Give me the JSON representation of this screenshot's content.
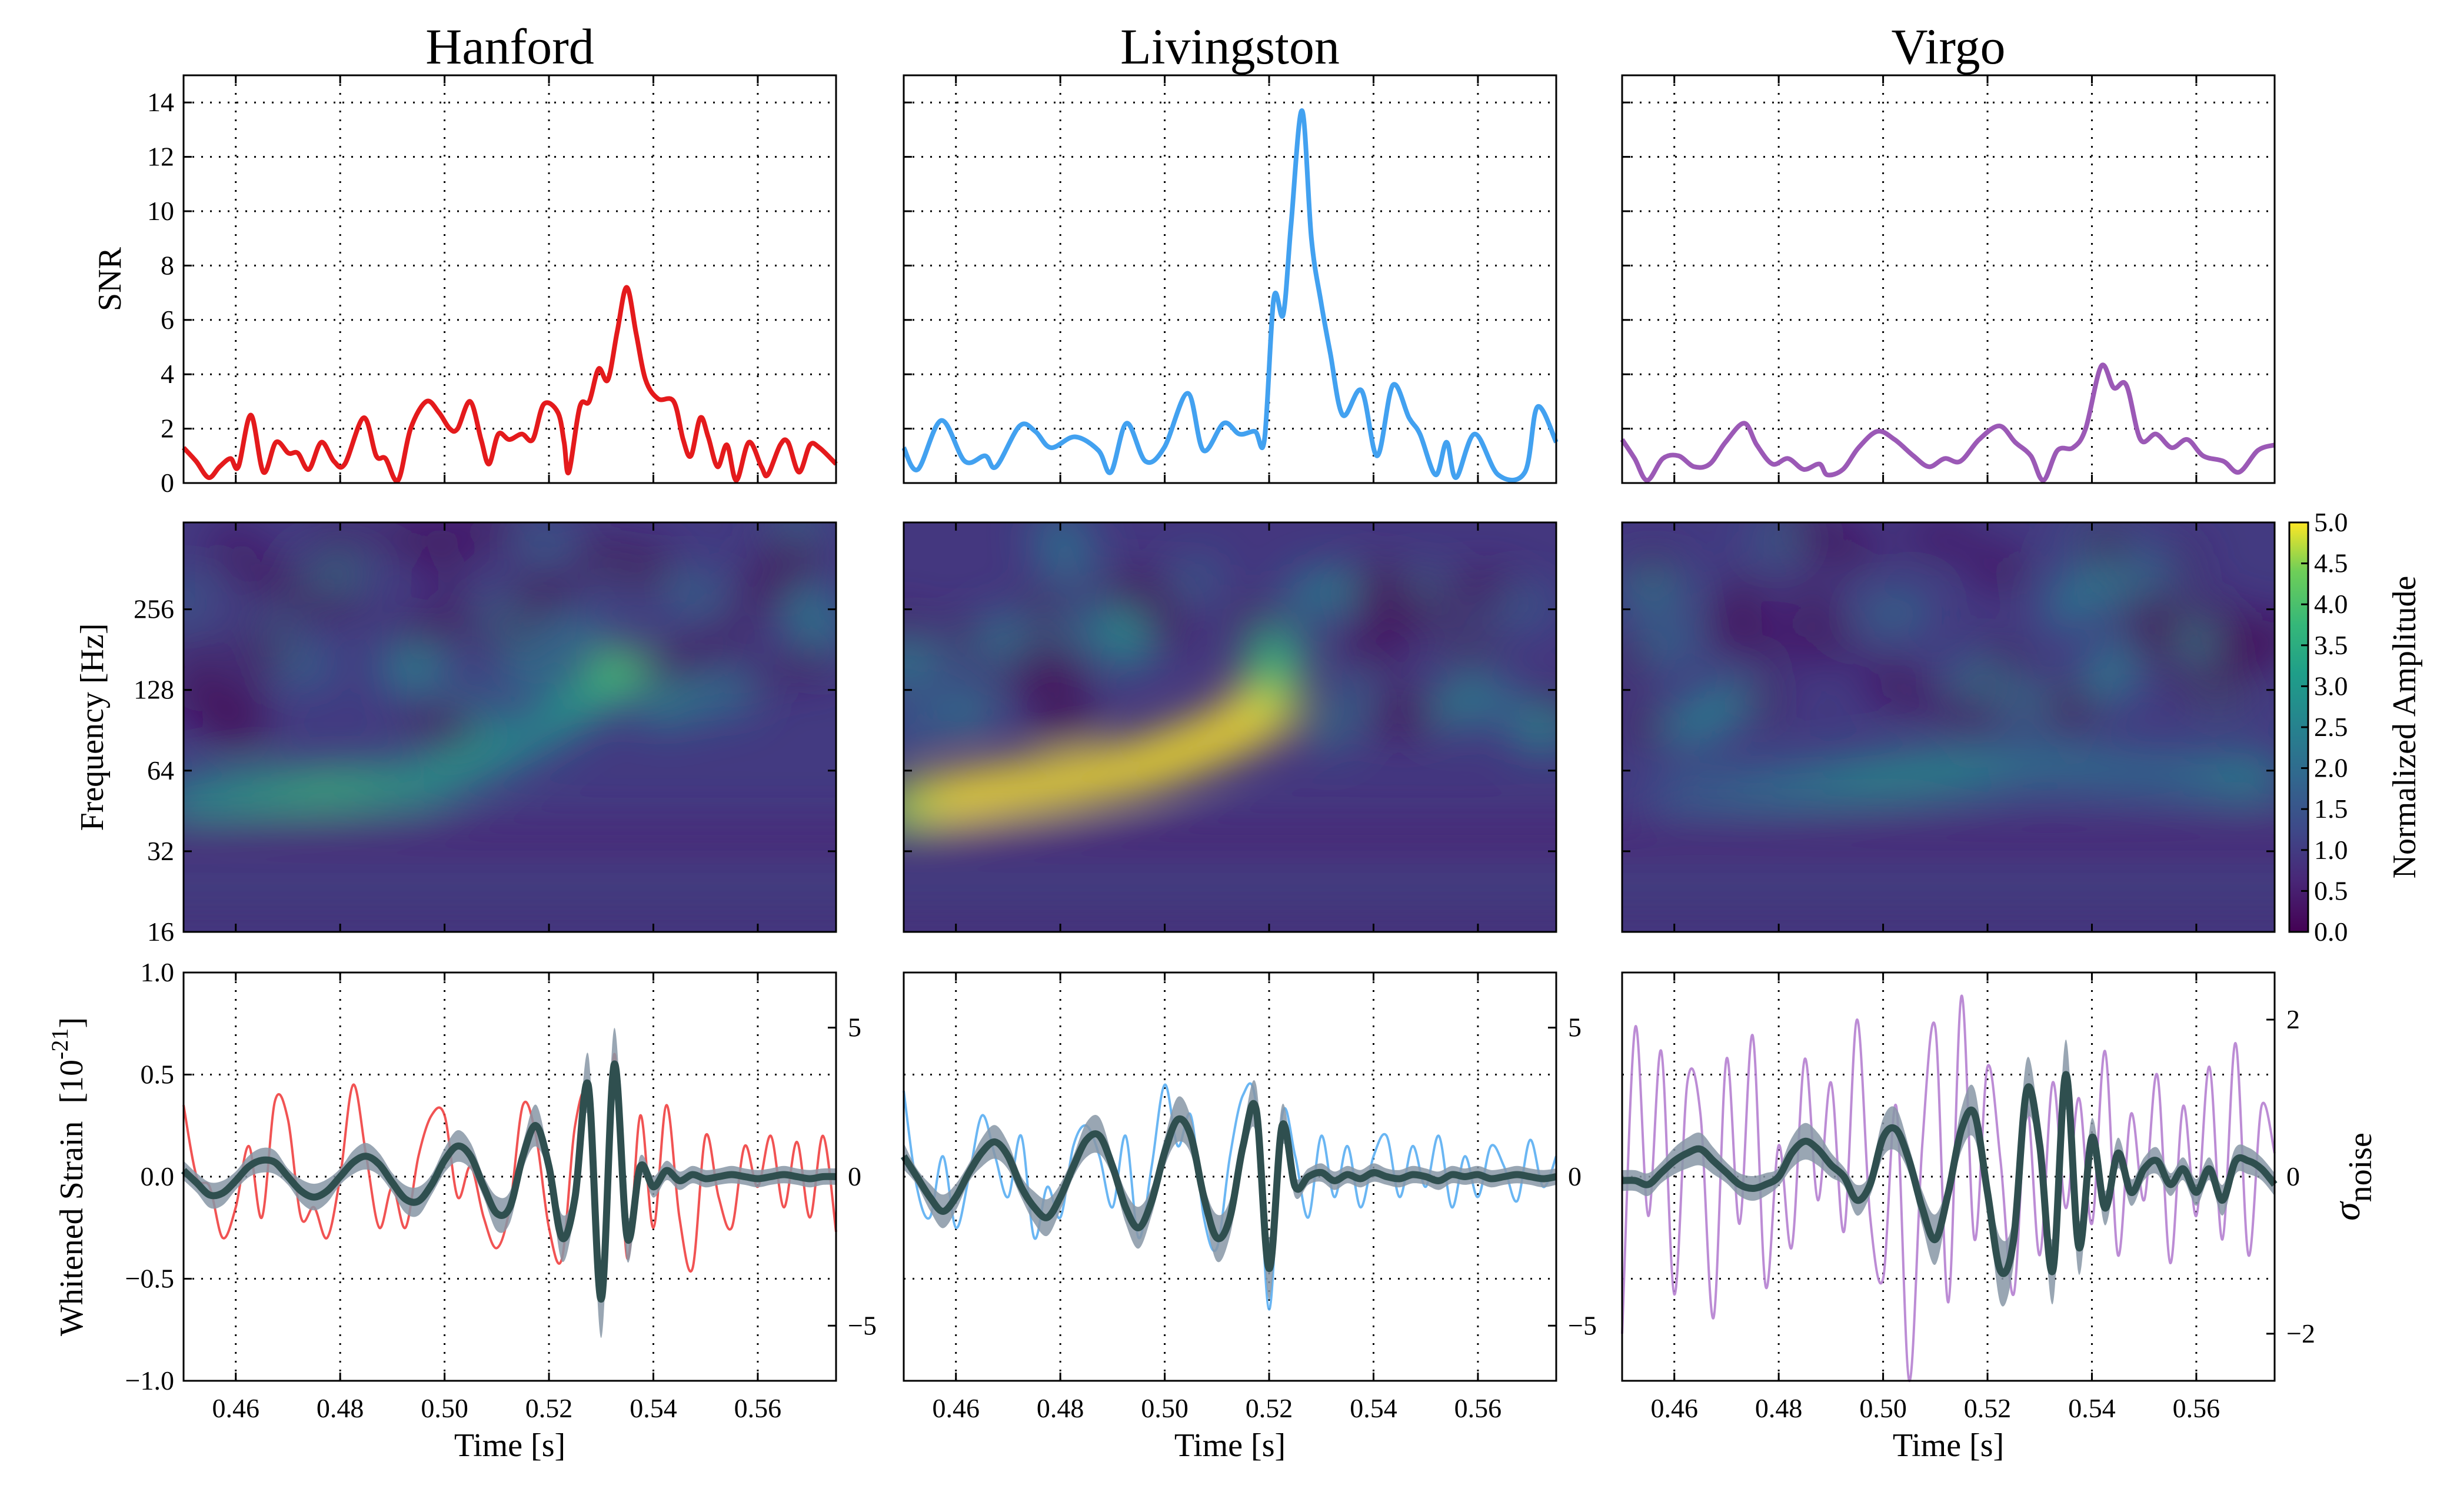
{
  "chart_data": {
    "type": "line",
    "columns": [
      {
        "title": "Hanford",
        "color": "#e41a1c",
        "data_color": "#ef4040"
      },
      {
        "title": "Livingston",
        "color": "#42a1f0",
        "data_color": "#5aaef2"
      },
      {
        "title": "Virgo",
        "color": "#9b59b6",
        "data_color": "#b57fd0"
      }
    ],
    "xlabel": "Time [s]",
    "xlim": [
      0.45,
      0.575
    ],
    "xticks": [
      0.46,
      0.48,
      0.5,
      0.52,
      0.54,
      0.56
    ],
    "xtick_labels": [
      "0.46",
      "0.48",
      "0.50",
      "0.52",
      "0.54",
      "0.56"
    ],
    "snr": {
      "ylabel": "SNR",
      "ylim": [
        0,
        15
      ],
      "yticks": [
        0,
        2,
        4,
        6,
        8,
        10,
        12,
        14
      ],
      "ytick_labels": [
        "0",
        "2",
        "4",
        "6",
        "8",
        "10",
        "12",
        "14"
      ],
      "grid": true,
      "series": [
        {
          "name": "Hanford",
          "t": [
            0.45,
            0.4524,
            0.4548,
            0.4569,
            0.459,
            0.4605,
            0.4629,
            0.4653,
            0.4677,
            0.4701,
            0.4719,
            0.474,
            0.4764,
            0.4788,
            0.4809,
            0.4845,
            0.4869,
            0.4887,
            0.4911,
            0.4935,
            0.4965,
            0.4989,
            0.501,
            0.5025,
            0.5049,
            0.507,
            0.5085,
            0.5103,
            0.5124,
            0.5148,
            0.5169,
            0.519,
            0.5217,
            0.5229,
            0.5238,
            0.5259,
            0.5277,
            0.5295,
            0.5313,
            0.5331,
            0.5349,
            0.5367,
            0.5385,
            0.5409,
            0.5439,
            0.5457,
            0.5472,
            0.549,
            0.5505,
            0.5523,
            0.5541,
            0.5559,
            0.5583,
            0.5607,
            0.5619,
            0.5643,
            0.5658,
            0.5679,
            0.57,
            0.5718,
            0.575
          ],
          "values": [
            1.3,
            0.8,
            0.2,
            0.6,
            0.9,
            0.6,
            2.5,
            0.4,
            1.5,
            1.1,
            1.1,
            0.5,
            1.5,
            0.8,
            0.7,
            2.4,
            1.0,
            0.9,
            0.1,
            2.0,
            3.0,
            2.6,
            2.0,
            2.0,
            3.0,
            1.6,
            0.7,
            1.8,
            1.6,
            1.8,
            1.6,
            2.9,
            2.6,
            1.5,
            0.4,
            2.8,
            3.0,
            4.2,
            3.8,
            5.6,
            7.2,
            5.5,
            3.8,
            3.1,
            3.0,
            1.6,
            1.0,
            2.4,
            1.7,
            0.6,
            1.4,
            0.1,
            1.5,
            0.6,
            0.3,
            1.4,
            1.5,
            0.4,
            1.4,
            1.3,
            0.7
          ]
        },
        {
          "name": "Livingston",
          "t": [
            0.45,
            0.4527,
            0.4572,
            0.4617,
            0.4656,
            0.4677,
            0.4722,
            0.4752,
            0.4782,
            0.4828,
            0.4873,
            0.4897,
            0.4927,
            0.4963,
            0.4999,
            0.5044,
            0.5074,
            0.5113,
            0.5143,
            0.5173,
            0.5191,
            0.5209,
            0.5227,
            0.5242,
            0.5263,
            0.5281,
            0.5299,
            0.5317,
            0.5341,
            0.5377,
            0.5407,
            0.5437,
            0.5468,
            0.5489,
            0.5519,
            0.554,
            0.5558,
            0.5594,
            0.5639,
            0.569,
            0.5714,
            0.575
          ],
          "values": [
            1.3,
            0.5,
            2.3,
            0.8,
            1.0,
            0.6,
            2.1,
            1.9,
            1.3,
            1.7,
            1.2,
            0.4,
            2.2,
            0.8,
            1.3,
            3.3,
            1.2,
            2.2,
            1.8,
            1.9,
            1.6,
            6.8,
            6.2,
            9.5,
            13.7,
            9.0,
            6.7,
            4.8,
            2.5,
            3.4,
            1.0,
            3.6,
            2.4,
            1.8,
            0.3,
            1.5,
            0.2,
            1.8,
            0.3,
            0.4,
            2.8,
            1.5
          ]
        },
        {
          "name": "Virgo",
          "t": [
            0.45,
            0.4524,
            0.4548,
            0.4578,
            0.4608,
            0.4638,
            0.4668,
            0.4698,
            0.4734,
            0.4758,
            0.4788,
            0.4818,
            0.4848,
            0.4878,
            0.4893,
            0.4923,
            0.4953,
            0.4989,
            0.5022,
            0.5058,
            0.5088,
            0.5118,
            0.5148,
            0.5184,
            0.5223,
            0.5253,
            0.5283,
            0.5307,
            0.5334,
            0.5364,
            0.5388,
            0.5418,
            0.5442,
            0.5466,
            0.5493,
            0.5523,
            0.5553,
            0.5583,
            0.5613,
            0.5652,
            0.5682,
            0.5718,
            0.575
          ],
          "values": [
            1.6,
            0.9,
            0.1,
            0.9,
            1.0,
            0.6,
            0.7,
            1.5,
            2.2,
            1.4,
            0.7,
            0.9,
            0.5,
            0.7,
            0.3,
            0.5,
            1.3,
            1.9,
            1.6,
            1.0,
            0.6,
            0.9,
            0.8,
            1.6,
            2.1,
            1.5,
            1.0,
            0.1,
            1.2,
            1.3,
            2.0,
            4.3,
            3.5,
            3.6,
            1.6,
            1.8,
            1.3,
            1.6,
            1.0,
            0.8,
            0.4,
            1.2,
            1.4
          ]
        }
      ]
    },
    "spectrogram": {
      "type": "heatmap",
      "ylabel": "Frequency [Hz]",
      "yscale": "log2",
      "ylim": [
        16,
        540
      ],
      "yticks": [
        16,
        32,
        64,
        128,
        256
      ],
      "ytick_labels": [
        "16",
        "32",
        "64",
        "128",
        "256"
      ],
      "colormap": "viridis",
      "colorbar": {
        "label": "Normalized Amplitude",
        "range": [
          0,
          5
        ],
        "ticks": [
          "0.0",
          "0.5",
          "1.0",
          "1.5",
          "2.0",
          "2.5",
          "3.0",
          "3.5",
          "4.0",
          "4.5",
          "5.0"
        ]
      },
      "background_amplitude": [
        0.8,
        0.75,
        0.8
      ],
      "tracks": [
        {
          "name": "Hanford",
          "points": [
            [
              0.45,
              50,
              2.6
            ],
            [
              0.465,
              53,
              3.2
            ],
            [
              0.48,
              55,
              3.6
            ],
            [
              0.495,
              57,
              3.2
            ],
            [
              0.51,
              75,
              2.8
            ],
            [
              0.52,
              95,
              2.6
            ],
            [
              0.528,
              125,
              3.0
            ],
            [
              0.535,
              165,
              4.0
            ]
          ]
        },
        {
          "name": "Livingston",
          "points": [
            [
              0.45,
              48,
              4.2
            ],
            [
              0.465,
              53,
              5.0
            ],
            [
              0.48,
              58,
              5.0
            ],
            [
              0.495,
              66,
              5.0
            ],
            [
              0.507,
              80,
              5.0
            ],
            [
              0.515,
              95,
              5.0
            ],
            [
              0.52,
              112,
              4.8
            ],
            [
              0.522,
              210,
              3.0
            ]
          ]
        },
        {
          "name": "Virgo",
          "points": [
            [
              0.46,
              52,
              1.6
            ],
            [
              0.48,
              55,
              2.2
            ],
            [
              0.5,
              60,
              2.8
            ],
            [
              0.515,
              64,
              2.8
            ],
            [
              0.53,
              68,
              2.3
            ],
            [
              0.555,
              62,
              2.0
            ],
            [
              0.575,
              60,
              2.8
            ]
          ]
        }
      ]
    },
    "strain": {
      "ylabel": "Whitened Strain",
      "yunit_base": "10",
      "yunit_exp": "-21",
      "ylim": [
        -1,
        1
      ],
      "yticks": [
        -1.0,
        -0.5,
        0.0,
        0.5,
        1.0
      ],
      "ytick_labels": [
        "−1.0",
        "−0.5",
        "0.0",
        "0.5",
        "1.0"
      ],
      "right_label_symbol": "σ",
      "right_label_sub": "noise",
      "right_axes": [
        {
          "ylim": [
            -6.85,
            6.85
          ],
          "yticks": [
            -5,
            0,
            5
          ],
          "ytick_labels": [
            "−5",
            "0",
            "5"
          ]
        },
        {
          "ylim": [
            -6.85,
            6.85
          ],
          "yticks": [
            -5,
            0,
            5
          ],
          "ytick_labels": [
            "−5",
            "0",
            "5"
          ]
        },
        {
          "ylim": [
            -2.6,
            2.6
          ],
          "yticks": [
            -2,
            0,
            2
          ],
          "ytick_labels": [
            "−2",
            "0",
            "2"
          ]
        }
      ],
      "sample_t0": 0.45,
      "sample_dt": 0.0025,
      "grid": true,
      "model_color": "#2f4f4f",
      "band_color": "#8797a6",
      "series": [
        {
          "name": "Hanford",
          "units": "strain",
          "data": [
            0.35,
            0.0,
            -0.05,
            -0.3,
            -0.15,
            0.15,
            -0.2,
            0.37,
            0.28,
            -0.2,
            -0.15,
            -0.3,
            0.0,
            0.45,
            0.1,
            -0.25,
            -0.05,
            -0.25,
            0.1,
            0.3,
            0.3,
            -0.1,
            0.05,
            -0.2,
            -0.35,
            -0.15,
            0.35,
            0.2,
            -0.25,
            -0.4,
            0.25,
            0.35,
            -0.6,
            0.6,
            -0.4,
            0.3,
            -0.25,
            0.35,
            -0.2,
            -0.45,
            0.2,
            -0.1,
            -0.25,
            0.15,
            -0.05,
            0.2,
            -0.15,
            0.17,
            -0.2,
            0.2,
            -0.27
          ],
          "model": [
            0.03,
            -0.03,
            -0.09,
            -0.08,
            -0.02,
            0.05,
            0.08,
            0.07,
            0.0,
            -0.07,
            -0.1,
            -0.07,
            0.0,
            0.07,
            0.1,
            0.06,
            -0.03,
            -0.11,
            -0.12,
            -0.04,
            0.08,
            0.15,
            0.1,
            -0.05,
            -0.18,
            -0.15,
            0.1,
            0.25,
            0.05,
            -0.3,
            -0.1,
            0.45,
            -0.6,
            0.55,
            -0.3,
            0.05,
            -0.05,
            0.03,
            -0.02,
            0.01,
            -0.01,
            0.0,
            0.01,
            0.0,
            -0.01,
            0.0,
            0.01,
            0.0,
            -0.01,
            0.0,
            0.0
          ]
        },
        {
          "name": "Livingston",
          "units": "strain",
          "data": [
            0.42,
            -0.05,
            -0.2,
            0.1,
            -0.25,
            0.0,
            0.3,
            0.1,
            -0.1,
            0.2,
            -0.3,
            -0.05,
            -0.2,
            0.15,
            0.25,
            0.1,
            -0.15,
            0.2,
            -0.3,
            0.05,
            0.45,
            0.15,
            0.3,
            -0.2,
            -0.35,
            0.1,
            0.4,
            0.35,
            -0.65,
            0.3,
            0.1,
            -0.2,
            0.2,
            -0.1,
            0.15,
            -0.15,
            0.1,
            0.2,
            -0.1,
            0.15,
            -0.05,
            0.2,
            -0.15,
            0.1,
            -0.1,
            0.15,
            0.05,
            -0.12,
            0.18,
            -0.05,
            0.1
          ],
          "model": [
            0.1,
            0.0,
            -0.1,
            -0.17,
            -0.1,
            0.02,
            0.12,
            0.17,
            0.1,
            -0.05,
            -0.15,
            -0.2,
            -0.1,
            0.05,
            0.18,
            0.2,
            0.05,
            -0.15,
            -0.25,
            -0.12,
            0.12,
            0.28,
            0.2,
            -0.1,
            -0.3,
            -0.2,
            0.15,
            0.33,
            -0.45,
            0.25,
            -0.05,
            0.0,
            0.02,
            -0.02,
            0.01,
            -0.01,
            0.02,
            0.0,
            -0.01,
            0.01,
            0.0,
            -0.02,
            0.01,
            0.0,
            0.01,
            -0.01,
            0.0,
            0.01,
            0.0,
            -0.01,
            0.0
          ]
        },
        {
          "name": "Virgo",
          "units": "sigma_noise",
          "data": [
            -2.0,
            1.9,
            -0.5,
            1.6,
            -1.5,
            1.2,
            0.8,
            -1.8,
            1.5,
            -0.6,
            1.8,
            -1.4,
            0.4,
            -0.9,
            1.5,
            -0.3,
            1.2,
            -0.7,
            2.0,
            -0.5,
            -1.3,
            0.9,
            -2.6,
            0.4,
            1.9,
            -1.6,
            2.3,
            -0.8,
            1.4,
            0.2,
            -1.5,
            0.9,
            -1.0,
            1.2,
            -0.4,
            1.0,
            -0.6,
            1.6,
            -1.0,
            0.8,
            -0.3,
            1.3,
            -1.1,
            0.9,
            -0.5,
            1.4,
            -0.8,
            1.7,
            -1.0,
            0.9,
            0.3
          ],
          "model": [
            -0.05,
            -0.05,
            -0.1,
            0.05,
            0.2,
            0.3,
            0.35,
            0.2,
            0.05,
            -0.1,
            -0.15,
            -0.1,
            0.0,
            0.3,
            0.45,
            0.35,
            0.15,
            0.0,
            -0.3,
            -0.1,
            0.5,
            0.6,
            0.2,
            -0.4,
            -0.8,
            -0.2,
            0.6,
            0.8,
            -0.2,
            -1.2,
            -0.8,
            1.1,
            0.4,
            -1.2,
            1.3,
            -0.9,
            0.5,
            -0.4,
            0.3,
            -0.2,
            0.1,
            0.2,
            -0.1,
            0.1,
            -0.2,
            0.1,
            -0.3,
            0.2,
            0.2,
            0.1,
            -0.1
          ]
        }
      ]
    }
  }
}
